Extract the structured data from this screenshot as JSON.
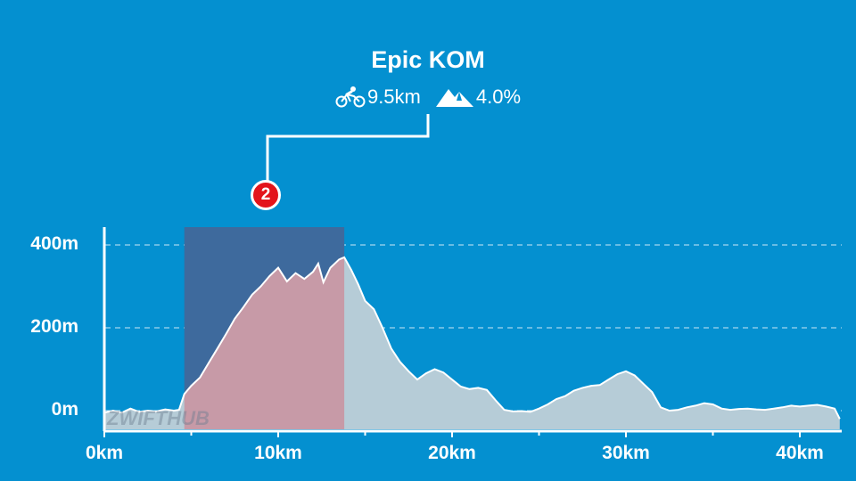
{
  "segment": {
    "title": "Epic KOM",
    "distance": "9.5km",
    "gradient": "4.0%",
    "marker_number": "2"
  },
  "watermark": "ZWIFTHUB",
  "colors": {
    "background": "#0490d0",
    "profile_fill": "#b6ccd7",
    "segment_fill": "#c79aa7",
    "highlight_band": "#3e6a9d",
    "marker": "#e3141b"
  },
  "icons": {
    "distance": "bicycle-icon",
    "gradient": "mountain-icon"
  },
  "chart_data": {
    "type": "area",
    "xlabel": "",
    "ylabel": "",
    "xlim": [
      0,
      42.3
    ],
    "ylim": [
      -50,
      450
    ],
    "y_ticks": [
      0,
      200,
      400
    ],
    "y_tick_labels": [
      "0m",
      "200m",
      "400m"
    ],
    "x_ticks": [
      0,
      10,
      20,
      30,
      40
    ],
    "x_tick_labels": [
      "0km",
      "10km",
      "20km",
      "30km",
      "40km"
    ],
    "grid": "dashed horizontal at y ticks",
    "highlight_range_km": [
      4.6,
      13.8
    ],
    "segment_range_km": [
      4.6,
      13.8
    ],
    "series": [
      {
        "x": [
          0,
          0.5,
          1.0,
          1.5,
          2.0,
          2.5,
          3.0,
          3.5,
          4.0,
          4.3,
          4.6,
          5.0,
          5.5,
          6.0,
          6.5,
          7.0,
          7.5,
          8.0,
          8.5,
          9.0,
          9.5,
          10.0,
          10.5,
          11.0,
          11.5,
          12.0,
          12.3,
          12.6,
          13.0,
          13.5,
          13.8,
          14.2,
          14.6,
          15.0,
          15.5,
          16.0,
          16.5,
          17.0,
          17.5,
          18.0,
          18.5,
          19.0,
          19.5,
          20.0,
          20.5,
          21.0,
          21.5,
          22.0,
          22.5,
          23.0,
          23.5,
          24.0,
          24.5,
          25.0,
          25.5,
          26.0,
          26.5,
          27.0,
          27.5,
          28.0,
          28.5,
          29.0,
          29.5,
          30.0,
          30.5,
          31.0,
          31.5,
          32.0,
          32.5,
          33.0,
          33.5,
          34.0,
          34.5,
          35.0,
          35.5,
          36.0,
          36.5,
          37.0,
          37.5,
          38.0,
          38.5,
          39.0,
          39.5,
          40.0,
          40.5,
          41.0,
          41.5,
          42.0,
          42.3
        ],
        "y": [
          -5,
          0,
          -5,
          5,
          -3,
          0,
          -2,
          3,
          0,
          2,
          40,
          60,
          80,
          115,
          150,
          185,
          222,
          250,
          280,
          300,
          325,
          345,
          312,
          332,
          318,
          335,
          355,
          310,
          345,
          365,
          370,
          340,
          305,
          265,
          245,
          200,
          150,
          118,
          95,
          75,
          90,
          100,
          92,
          75,
          58,
          52,
          55,
          50,
          25,
          2,
          -2,
          -1,
          -3,
          5,
          15,
          28,
          35,
          48,
          55,
          60,
          62,
          75,
          88,
          95,
          85,
          65,
          45,
          8,
          0,
          2,
          8,
          12,
          18,
          15,
          5,
          2,
          4,
          5,
          3,
          2,
          5,
          8,
          12,
          10,
          12,
          14,
          10,
          5,
          -20
        ]
      }
    ]
  }
}
